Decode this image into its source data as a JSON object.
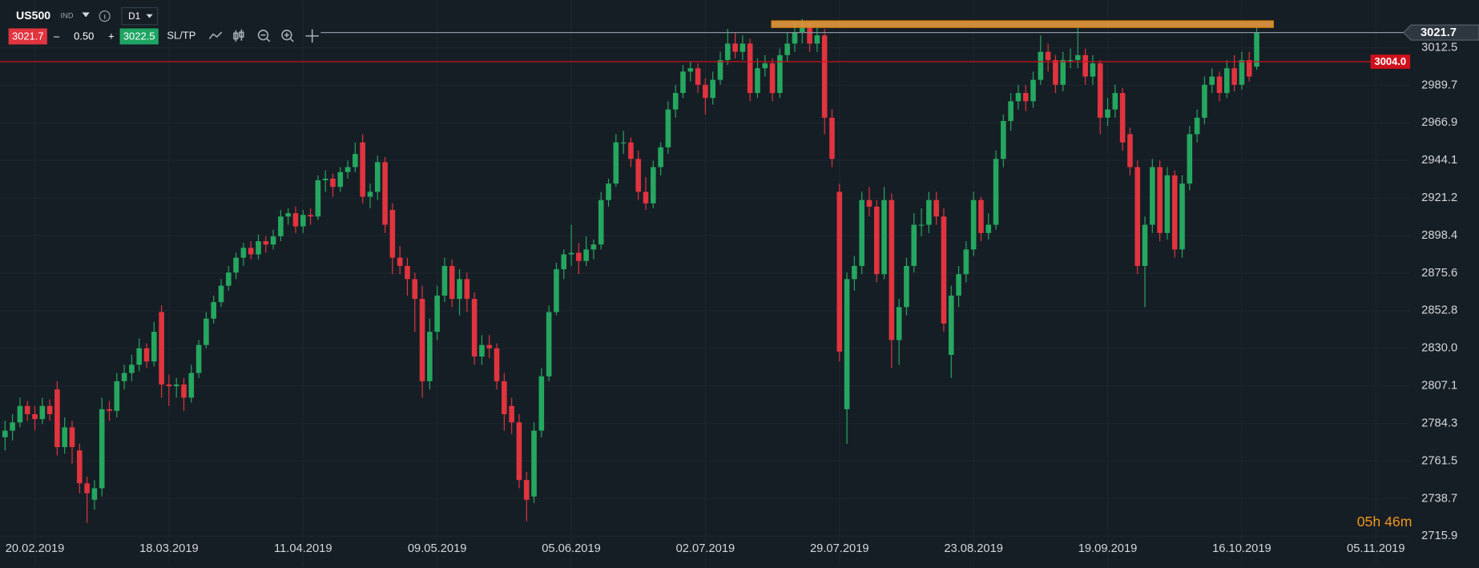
{
  "toolbar": {
    "symbol": "US500",
    "market": "IND",
    "timeframe": "D1",
    "sell": "3021.7",
    "minus": "–",
    "volume": "0.50",
    "plus": "+",
    "buy": "3022.5",
    "sltp": "SL/TP"
  },
  "countdown": "05h 46m",
  "chart_data": {
    "type": "candlestick",
    "up_color": "#25a760",
    "down_color": "#e0343f",
    "xlim": [
      -0.68,
      188.6
    ],
    "xticks": [
      {
        "value": 4,
        "label": "20.02.2019"
      },
      {
        "value": 22,
        "label": "18.03.2019"
      },
      {
        "value": 40,
        "label": "11.04.2019"
      },
      {
        "value": 58,
        "label": "09.05.2019"
      },
      {
        "value": 76,
        "label": "05.06.2019"
      },
      {
        "value": 94,
        "label": "02.07.2019"
      },
      {
        "value": 112,
        "label": "29.07.2019"
      },
      {
        "value": 130,
        "label": "23.08.2019"
      },
      {
        "value": 148,
        "label": "19.09.2019"
      },
      {
        "value": 166,
        "label": "16.10.2019"
      },
      {
        "value": 184,
        "label": "05.11.2019"
      }
    ],
    "ylim": [
      2697.8,
      3041.4
    ],
    "yticks": [
      2715.9,
      2738.7,
      2761.5,
      2784.3,
      2807.1,
      {
        "value": 2830,
        "label": "2830.0"
      },
      2852.8,
      2875.6,
      2898.4,
      2921.2,
      2944.1,
      2966.9,
      2989.7,
      3012.5
    ],
    "grid": true,
    "price_lines": [
      {
        "value": 3021.7,
        "color": "#8a949e"
      },
      {
        "value": 3004,
        "label": "3004.0",
        "color": "#d0101c"
      }
    ],
    "ohlc": [
      [
        2776,
        2786,
        2768,
        2780
      ],
      [
        2780,
        2790,
        2774,
        2785
      ],
      [
        2785,
        2800,
        2782,
        2795
      ],
      [
        2795,
        2798,
        2786,
        2790
      ],
      [
        2790,
        2795,
        2780,
        2787
      ],
      [
        2787,
        2800,
        2784,
        2795
      ],
      [
        2795,
        2799,
        2786,
        2790
      ],
      [
        2805,
        2810,
        2765,
        2770
      ],
      [
        2770,
        2788,
        2766,
        2782
      ],
      [
        2782,
        2786,
        2760,
        2770
      ],
      [
        2768,
        2772,
        2742,
        2748
      ],
      [
        2748,
        2752,
        2724,
        2742
      ],
      [
        2738,
        2750,
        2732,
        2745
      ],
      [
        2745,
        2800,
        2740,
        2793
      ],
      [
        2793,
        2798,
        2786,
        2792
      ],
      [
        2792,
        2815,
        2788,
        2810
      ],
      [
        2810,
        2820,
        2805,
        2815
      ],
      [
        2815,
        2826,
        2810,
        2820
      ],
      [
        2820,
        2836,
        2816,
        2830
      ],
      [
        2830,
        2833,
        2818,
        2822
      ],
      [
        2822,
        2846,
        2819,
        2840
      ],
      [
        2852,
        2856,
        2800,
        2808
      ],
      [
        2808,
        2814,
        2795,
        2807
      ],
      [
        2807,
        2812,
        2800,
        2808
      ],
      [
        2808,
        2812,
        2792,
        2800
      ],
      [
        2800,
        2820,
        2797,
        2815
      ],
      [
        2815,
        2835,
        2812,
        2832
      ],
      [
        2832,
        2852,
        2830,
        2848
      ],
      [
        2848,
        2862,
        2845,
        2858
      ],
      [
        2858,
        2872,
        2855,
        2868
      ],
      [
        2868,
        2880,
        2865,
        2876
      ],
      [
        2876,
        2888,
        2872,
        2885
      ],
      [
        2885,
        2894,
        2880,
        2891
      ],
      [
        2891,
        2895,
        2884,
        2887
      ],
      [
        2887,
        2899,
        2884,
        2895
      ],
      [
        2895,
        2898,
        2888,
        2893
      ],
      [
        2893,
        2902,
        2890,
        2898
      ],
      [
        2898,
        2914,
        2895,
        2910
      ],
      [
        2910,
        2915,
        2905,
        2912
      ],
      [
        2912,
        2916,
        2900,
        2904
      ],
      [
        2904,
        2914,
        2900,
        2911
      ],
      [
        2911,
        2915,
        2905,
        2910
      ],
      [
        2910,
        2935,
        2908,
        2932
      ],
      [
        2932,
        2938,
        2925,
        2933
      ],
      [
        2933,
        2936,
        2922,
        2928
      ],
      [
        2928,
        2940,
        2925,
        2937
      ],
      [
        2937,
        2944,
        2933,
        2940
      ],
      [
        2940,
        2955,
        2937,
        2948
      ],
      [
        2955,
        2960,
        2918,
        2922
      ],
      [
        2922,
        2930,
        2915,
        2925
      ],
      [
        2925,
        2947,
        2920,
        2943
      ],
      [
        2943,
        2946,
        2900,
        2905
      ],
      [
        2914,
        2918,
        2875,
        2885
      ],
      [
        2885,
        2892,
        2875,
        2880
      ],
      [
        2880,
        2885,
        2862,
        2872
      ],
      [
        2872,
        2876,
        2840,
        2860
      ],
      [
        2860,
        2868,
        2800,
        2810
      ],
      [
        2810,
        2848,
        2805,
        2840
      ],
      [
        2840,
        2868,
        2835,
        2862
      ],
      [
        2862,
        2885,
        2858,
        2880
      ],
      [
        2880,
        2884,
        2855,
        2860
      ],
      [
        2860,
        2878,
        2850,
        2872
      ],
      [
        2872,
        2876,
        2852,
        2860
      ],
      [
        2860,
        2864,
        2820,
        2825
      ],
      [
        2825,
        2838,
        2820,
        2832
      ],
      [
        2832,
        2838,
        2824,
        2830
      ],
      [
        2830,
        2833,
        2805,
        2810
      ],
      [
        2810,
        2815,
        2780,
        2790
      ],
      [
        2795,
        2800,
        2778,
        2785
      ],
      [
        2785,
        2790,
        2745,
        2750
      ],
      [
        2750,
        2755,
        2725,
        2738
      ],
      [
        2740,
        2785,
        2736,
        2780
      ],
      [
        2780,
        2818,
        2776,
        2813
      ],
      [
        2813,
        2856,
        2810,
        2852
      ],
      [
        2852,
        2882,
        2850,
        2878
      ],
      [
        2878,
        2890,
        2872,
        2887
      ],
      [
        2887,
        2905,
        2880,
        2888
      ],
      [
        2888,
        2894,
        2875,
        2883
      ],
      [
        2883,
        2898,
        2880,
        2890
      ],
      [
        2890,
        2896,
        2884,
        2893
      ],
      [
        2893,
        2925,
        2890,
        2920
      ],
      [
        2920,
        2933,
        2916,
        2930
      ],
      [
        2930,
        2960,
        2928,
        2955
      ],
      [
        2955,
        2962,
        2948,
        2955
      ],
      [
        2955,
        2958,
        2940,
        2945
      ],
      [
        2945,
        2950,
        2920,
        2925
      ],
      [
        2925,
        2934,
        2914,
        2918
      ],
      [
        2918,
        2944,
        2915,
        2940
      ],
      [
        2940,
        2955,
        2935,
        2952
      ],
      [
        2952,
        2980,
        2948,
        2975
      ],
      [
        2975,
        2990,
        2970,
        2985
      ],
      [
        2985,
        3002,
        2982,
        2998
      ],
      [
        2998,
        3004,
        2992,
        3000
      ],
      [
        3000,
        3003,
        2985,
        2990
      ],
      [
        2990,
        2994,
        2972,
        2982
      ],
      [
        2982,
        2998,
        2978,
        2993
      ],
      [
        2993,
        3010,
        2990,
        3005
      ],
      [
        3005,
        3024,
        3002,
        3015
      ],
      [
        3015,
        3022,
        3006,
        3010
      ],
      [
        3010,
        3020,
        3005,
        3015
      ],
      [
        3015,
        3018,
        2980,
        2985
      ],
      [
        2985,
        3006,
        2982,
        3000
      ],
      [
        3000,
        3008,
        2995,
        3003
      ],
      [
        3003,
        3006,
        2980,
        2985
      ],
      [
        2985,
        3012,
        2982,
        3008
      ],
      [
        3008,
        3022,
        3004,
        3015
      ],
      [
        3015,
        3028,
        3010,
        3022
      ],
      [
        3022,
        3030,
        3015,
        3025
      ],
      [
        3025,
        3028,
        3010,
        3015
      ],
      [
        3015,
        3025,
        3010,
        3020
      ],
      [
        3020,
        3024,
        2960,
        2970
      ],
      [
        2970,
        2975,
        2940,
        2945
      ],
      [
        2925,
        2930,
        2822,
        2828
      ],
      [
        2793,
        2876,
        2772,
        2872
      ],
      [
        2872,
        2886,
        2865,
        2880
      ],
      [
        2880,
        2925,
        2875,
        2920
      ],
      [
        2920,
        2928,
        2910,
        2916
      ],
      [
        2916,
        2920,
        2870,
        2875
      ],
      [
        2875,
        2928,
        2872,
        2920
      ],
      [
        2920,
        2924,
        2818,
        2835
      ],
      [
        2835,
        2860,
        2820,
        2855
      ],
      [
        2855,
        2885,
        2850,
        2880
      ],
      [
        2880,
        2912,
        2876,
        2905
      ],
      [
        2905,
        2915,
        2898,
        2905
      ],
      [
        2905,
        2925,
        2900,
        2920
      ],
      [
        2920,
        2925,
        2905,
        2910
      ],
      [
        2910,
        2915,
        2840,
        2845
      ],
      [
        2826,
        2868,
        2812,
        2862
      ],
      [
        2862,
        2880,
        2855,
        2875
      ],
      [
        2875,
        2895,
        2870,
        2890
      ],
      [
        2890,
        2925,
        2886,
        2920
      ],
      [
        2920,
        2922,
        2895,
        2900
      ],
      [
        2900,
        2912,
        2896,
        2905
      ],
      [
        2905,
        2950,
        2902,
        2945
      ],
      [
        2945,
        2972,
        2940,
        2968
      ],
      [
        2968,
        2985,
        2962,
        2980
      ],
      [
        2980,
        2990,
        2975,
        2985
      ],
      [
        2985,
        2990,
        2974,
        2980
      ],
      [
        2980,
        2998,
        2976,
        2993
      ],
      [
        2993,
        3020,
        2990,
        3010
      ],
      [
        3010,
        3015,
        2998,
        3005
      ],
      [
        3005,
        3008,
        2985,
        2990
      ],
      [
        2990,
        3010,
        2986,
        3005
      ],
      [
        3005,
        3012,
        3000,
        3005
      ],
      [
        3005,
        3025,
        3000,
        3008
      ],
      [
        3008,
        3012,
        2990,
        2995
      ],
      [
        2995,
        3008,
        2990,
        3003
      ],
      [
        3003,
        3005,
        2960,
        2970
      ],
      [
        2970,
        2982,
        2965,
        2975
      ],
      [
        2975,
        2990,
        2970,
        2985
      ],
      [
        2985,
        2988,
        2950,
        2955
      ],
      [
        2960,
        2964,
        2935,
        2940
      ],
      [
        2940,
        2944,
        2875,
        2880
      ],
      [
        2880,
        2910,
        2855,
        2905
      ],
      [
        2905,
        2945,
        2900,
        2940
      ],
      [
        2940,
        2944,
        2895,
        2900
      ],
      [
        2900,
        2940,
        2896,
        2935
      ],
      [
        2935,
        2938,
        2885,
        2890
      ],
      [
        2890,
        2935,
        2885,
        2930
      ],
      [
        2930,
        2965,
        2926,
        2960
      ],
      [
        2960,
        2975,
        2955,
        2970
      ],
      [
        2970,
        2995,
        2966,
        2990
      ],
      [
        2990,
        3000,
        2985,
        2995
      ],
      [
        2995,
        2998,
        2980,
        2985
      ],
      [
        2985,
        3005,
        2982,
        3000
      ],
      [
        3000,
        3008,
        2986,
        2990
      ],
      [
        2990,
        3010,
        2987,
        3005
      ],
      [
        3005,
        3010,
        2992,
        2995
      ],
      [
        3001,
        3025,
        2999,
        3021.7
      ]
    ]
  }
}
